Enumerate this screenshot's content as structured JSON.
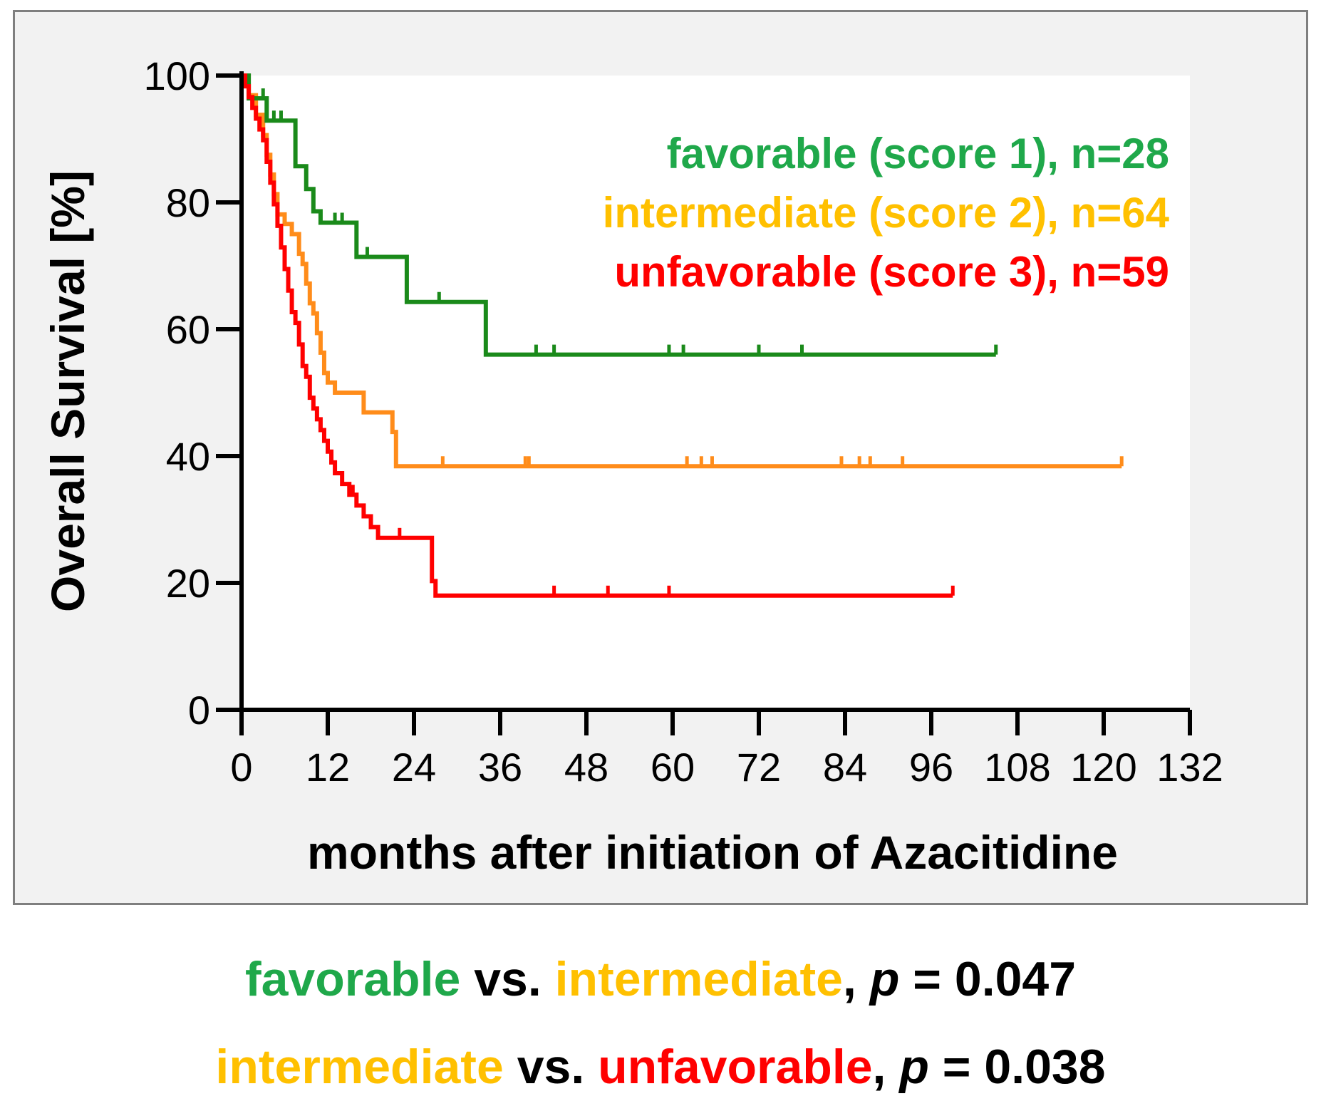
{
  "chart_data": {
    "type": "line",
    "subtype": "kaplan-meier step",
    "title": "",
    "xlabel": "months after initiation of Azacitidine",
    "ylabel": "Overall Survival [%]",
    "xlim": [
      0,
      132
    ],
    "ylim": [
      0,
      100
    ],
    "x_ticks": [
      "0",
      "12",
      "24",
      "36",
      "48",
      "60",
      "72",
      "84",
      "96",
      "108",
      "120",
      "132"
    ],
    "y_ticks": [
      "0",
      "20",
      "40",
      "60",
      "80",
      "100"
    ],
    "grid": false,
    "legend_position": "top-right",
    "series": [
      {
        "name": "favorable (score 1), n=28",
        "color": "#1a8a1a",
        "legend_color": "#1fa84a",
        "steps": [
          [
            0,
            100
          ],
          [
            1,
            96.4
          ],
          [
            3.5,
            92.9
          ],
          [
            7.5,
            85.7
          ],
          [
            9,
            82.1
          ],
          [
            10,
            78.6
          ],
          [
            11,
            76.8
          ],
          [
            16,
            71.4
          ],
          [
            23,
            64.3
          ],
          [
            34,
            56
          ]
        ],
        "end_x": 105,
        "censor_x": [
          3,
          4.5,
          5.5,
          13,
          14,
          17.5,
          23,
          27.5,
          41,
          43.5,
          59.5,
          61.5,
          72,
          78,
          105
        ]
      },
      {
        "name": "intermediate (score 2), n=64",
        "color": "#ff8c1a",
        "legend_color": "#ffc000",
        "steps": [
          [
            0,
            100
          ],
          [
            1,
            96.9
          ],
          [
            2,
            93.8
          ],
          [
            3,
            90.6
          ],
          [
            3.5,
            87.5
          ],
          [
            4,
            84.4
          ],
          [
            4.5,
            81.3
          ],
          [
            5,
            78.1
          ],
          [
            6,
            76.6
          ],
          [
            7,
            75
          ],
          [
            8,
            71.9
          ],
          [
            8.5,
            70.3
          ],
          [
            9,
            67.2
          ],
          [
            9.5,
            64.1
          ],
          [
            10,
            62.5
          ],
          [
            10.5,
            59.4
          ],
          [
            11,
            56.3
          ],
          [
            11.5,
            53.1
          ],
          [
            12,
            51.6
          ],
          [
            13,
            50
          ],
          [
            17,
            46.9
          ],
          [
            21,
            43.8
          ],
          [
            21.5,
            38.4
          ]
        ],
        "end_x": 122.5,
        "censor_x": [
          28,
          39.5,
          40,
          62,
          64,
          65.5,
          83.5,
          86,
          87.5,
          92,
          122.5
        ]
      },
      {
        "name": "unfavorable (score 3), n=59",
        "color": "#ff0000",
        "legend_color": "#ff0000",
        "steps": [
          [
            0,
            100
          ],
          [
            0.5,
            98.3
          ],
          [
            1,
            96.6
          ],
          [
            1.5,
            94.9
          ],
          [
            2,
            93.2
          ],
          [
            2.5,
            91.5
          ],
          [
            3,
            89.8
          ],
          [
            3.5,
            86.4
          ],
          [
            4,
            83.1
          ],
          [
            4.5,
            79.7
          ],
          [
            5,
            76.3
          ],
          [
            5.5,
            72.9
          ],
          [
            6,
            69.5
          ],
          [
            6.5,
            66.1
          ],
          [
            7,
            62.7
          ],
          [
            7.5,
            61
          ],
          [
            8,
            57.6
          ],
          [
            8.5,
            54.2
          ],
          [
            9,
            52.5
          ],
          [
            9.5,
            49.2
          ],
          [
            10,
            47.5
          ],
          [
            10.5,
            45.8
          ],
          [
            11,
            44.1
          ],
          [
            11.5,
            42.4
          ],
          [
            12,
            40.7
          ],
          [
            12.5,
            39
          ],
          [
            13,
            37.3
          ],
          [
            14,
            35.6
          ],
          [
            15,
            33.9
          ],
          [
            16,
            32.2
          ],
          [
            17,
            30.5
          ],
          [
            18,
            28.8
          ],
          [
            19,
            27.1
          ],
          [
            26.5,
            20.3
          ],
          [
            27,
            18
          ]
        ],
        "end_x": 99,
        "censor_x": [
          8.5,
          11,
          15.5,
          22,
          43.5,
          51,
          59.5,
          99
        ]
      }
    ],
    "pvalues": [
      {
        "group_a": "favorable",
        "group_b": "intermediate",
        "p_symbol": "p",
        "value": "0.047"
      },
      {
        "group_a": "intermediate",
        "group_b": "unfavorable",
        "p_symbol": "p",
        "value": "0.038"
      }
    ]
  },
  "text": {
    "vs": "vs.",
    "comma": ",",
    "equals": " = "
  }
}
